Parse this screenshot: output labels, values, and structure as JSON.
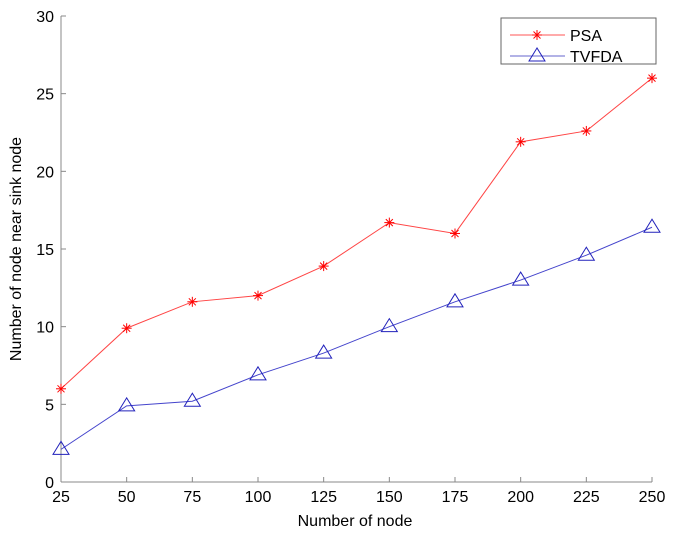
{
  "chart_data": {
    "type": "line",
    "title": "",
    "xlabel": "Number of node",
    "ylabel": "Number of node near sink node",
    "x": [
      25,
      50,
      75,
      100,
      125,
      150,
      175,
      200,
      225,
      250
    ],
    "xticks": [
      "25",
      "50",
      "75",
      "100",
      "125",
      "150",
      "175",
      "200",
      "225",
      "250"
    ],
    "yticks": [
      "0",
      "5",
      "10",
      "15",
      "20",
      "25",
      "30"
    ],
    "xlim": [
      25,
      250
    ],
    "ylim": [
      0,
      30
    ],
    "grid": false,
    "legend_position": "upper right",
    "series": [
      {
        "name": "PSA",
        "color": "#ff0000",
        "marker": "asterisk",
        "values": [
          6.0,
          9.9,
          11.6,
          12.0,
          13.9,
          16.7,
          16.0,
          21.9,
          22.6,
          26.0
        ]
      },
      {
        "name": "TVFDA",
        "color": "#0000ff",
        "marker": "triangle",
        "values": [
          2.1,
          4.9,
          5.2,
          6.9,
          8.3,
          10.0,
          11.6,
          13.0,
          14.6,
          16.4
        ]
      }
    ]
  },
  "legend": {
    "items": [
      {
        "label": "PSA",
        "color": "#ff0000"
      },
      {
        "label": "TVFDA",
        "color": "#0000ff"
      }
    ]
  }
}
